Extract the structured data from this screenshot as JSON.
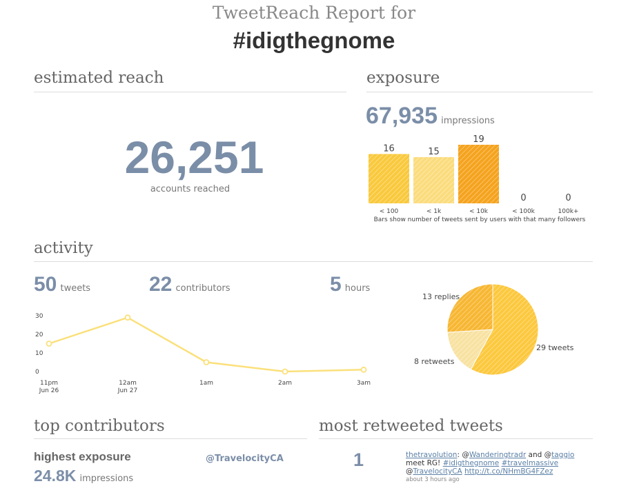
{
  "header": {
    "line1": "TweetReach Report for",
    "hashtag": "#idigthegnome"
  },
  "reach": {
    "heading": "estimated reach",
    "value": "26,251",
    "label": "accounts reached"
  },
  "exposure": {
    "heading": "exposure",
    "value": "67,935",
    "unit": "impressions",
    "note": "Bars show number of tweets sent by users with that many followers",
    "chart_data": {
      "type": "bar",
      "categories": [
        "< 100",
        "< 1k",
        "< 10k",
        "< 100k",
        "100k+"
      ],
      "values": [
        16,
        15,
        19,
        0,
        0
      ],
      "colors": [
        "#f9c93d",
        "#fbdc7d",
        "#f5a31e",
        "#f9c93d",
        "#f9c93d"
      ]
    }
  },
  "activity": {
    "heading": "activity",
    "tweets": {
      "value": "50",
      "unit": "tweets"
    },
    "contributors": {
      "value": "22",
      "unit": "contributors"
    },
    "hours": {
      "value": "5",
      "unit": "hours"
    },
    "line_chart": {
      "type": "line",
      "x": [
        "11pm\nJun 26",
        "12am\nJun 27",
        "1am",
        "2am",
        "3am"
      ],
      "y": [
        15,
        29,
        5,
        0,
        1
      ],
      "yticks": [
        0,
        10,
        20,
        30
      ],
      "ylim": [
        0,
        30
      ],
      "color": "#fbe07a"
    },
    "pie_chart": {
      "type": "pie",
      "labels": [
        "29 tweets",
        "8 retweets",
        "13 replies"
      ],
      "values": [
        29,
        8,
        13
      ],
      "colors": [
        "#fcc83e",
        "#f8e2a2",
        "#f7b733"
      ]
    }
  },
  "contributors": {
    "heading": "top contributors",
    "label": "highest exposure",
    "value": "24.8K",
    "unit": "impressions",
    "handle": "@TravelocityCA"
  },
  "retweeted": {
    "heading": "most retweeted tweets",
    "rank": "1",
    "author": "thetravolution",
    "t1": ": @",
    "m1": "Wanderingtradr",
    "t2": " and @",
    "m2": "taggio",
    "t3": "meet RG! ",
    "h1": "#idigthegnome",
    "h2": "#travelmassive",
    "t4": "@",
    "m3": "TravelocityCA",
    "url": "http://t.co/NHmBG4FZez",
    "time": "about 3 hours ago"
  }
}
